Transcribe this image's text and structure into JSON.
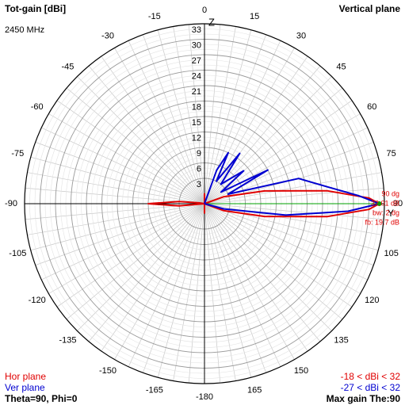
{
  "header": {
    "title": "Tot-gain [dBi]",
    "plane": "Vertical plane",
    "frequency": "2450 MHz"
  },
  "footer": {
    "hor_label": "Hor plane",
    "ver_label": "Ver plane",
    "hor_range": "-18 < dBi < 32",
    "ver_range": "-27 < dBi < 32",
    "angles": "Theta=90, Phi=0",
    "max_gain": "Max gain The:90"
  },
  "colors": {
    "hor": "#e00000",
    "ver": "#0000d0",
    "grid": "#c8c8c8",
    "axis": "#000000",
    "marker": "#00a000",
    "ref": "#00a000"
  },
  "chart_data": {
    "type": "polar",
    "title": "Tot-gain [dBi]",
    "radial_ticks": [
      3,
      6,
      9,
      12,
      15,
      18,
      21,
      24,
      27,
      30,
      33
    ],
    "radial_range": [
      -18,
      33
    ],
    "angle_ticks": [
      "-180",
      "-165",
      "-150",
      "-135",
      "-120",
      "-105",
      "-90",
      "-75",
      "-60",
      "-45",
      "-30",
      "-15",
      "0",
      "15",
      "30",
      "45",
      "60",
      "75",
      "90",
      "105",
      "120",
      "135",
      "150",
      "165"
    ],
    "axis_labels": {
      "top": "Z",
      "right": "Y"
    },
    "annotation": [
      "90 dg",
      "32.01 dB",
      "bw: 2 dg",
      "fb: 19.7 dB"
    ],
    "max": {
      "angle": 90,
      "gain": 32.01
    },
    "series": [
      {
        "name": "Hor plane",
        "points": [
          [
            -180,
            0
          ],
          [
            -150,
            -5
          ],
          [
            -120,
            -6
          ],
          [
            -100,
            -2
          ],
          [
            -95,
            3
          ],
          [
            -90,
            9
          ],
          [
            -85,
            3
          ],
          [
            -80,
            -1
          ],
          [
            -60,
            -4
          ],
          [
            -45,
            -6
          ],
          [
            -30,
            -5
          ],
          [
            -15,
            -3
          ],
          [
            0,
            0
          ],
          [
            15,
            -4
          ],
          [
            30,
            -5
          ],
          [
            45,
            -6
          ],
          [
            60,
            -3
          ],
          [
            70,
            2
          ],
          [
            78,
            10
          ],
          [
            84,
            22
          ],
          [
            88,
            30
          ],
          [
            90,
            32
          ],
          [
            92,
            30
          ],
          [
            96,
            22
          ],
          [
            102,
            10
          ],
          [
            110,
            2
          ],
          [
            120,
            -3
          ],
          [
            135,
            -5
          ],
          [
            150,
            -6
          ],
          [
            165,
            -5
          ],
          [
            180,
            0
          ]
        ]
      },
      {
        "name": "Ver plane",
        "points": [
          [
            0,
            -10
          ],
          [
            10,
            -3
          ],
          [
            20,
            5
          ],
          [
            25,
            9
          ],
          [
            28,
            3
          ],
          [
            35,
            10
          ],
          [
            40,
            3
          ],
          [
            50,
            8
          ],
          [
            55,
            2
          ],
          [
            62,
            12
          ],
          [
            68,
            3
          ],
          [
            75,
            17
          ],
          [
            82,
            22
          ],
          [
            87,
            28
          ],
          [
            90,
            32
          ],
          [
            93,
            26
          ],
          [
            98,
            14
          ],
          [
            105,
            2
          ],
          [
            115,
            -12
          ],
          [
            135,
            -18
          ],
          [
            180,
            -18
          ],
          [
            -135,
            -18
          ],
          [
            -100,
            -12
          ],
          [
            -92,
            -6
          ],
          [
            -90,
            -4
          ],
          [
            -88,
            -6
          ],
          [
            -70,
            -12
          ],
          [
            -30,
            -16
          ],
          [
            0,
            -10
          ]
        ]
      }
    ]
  }
}
